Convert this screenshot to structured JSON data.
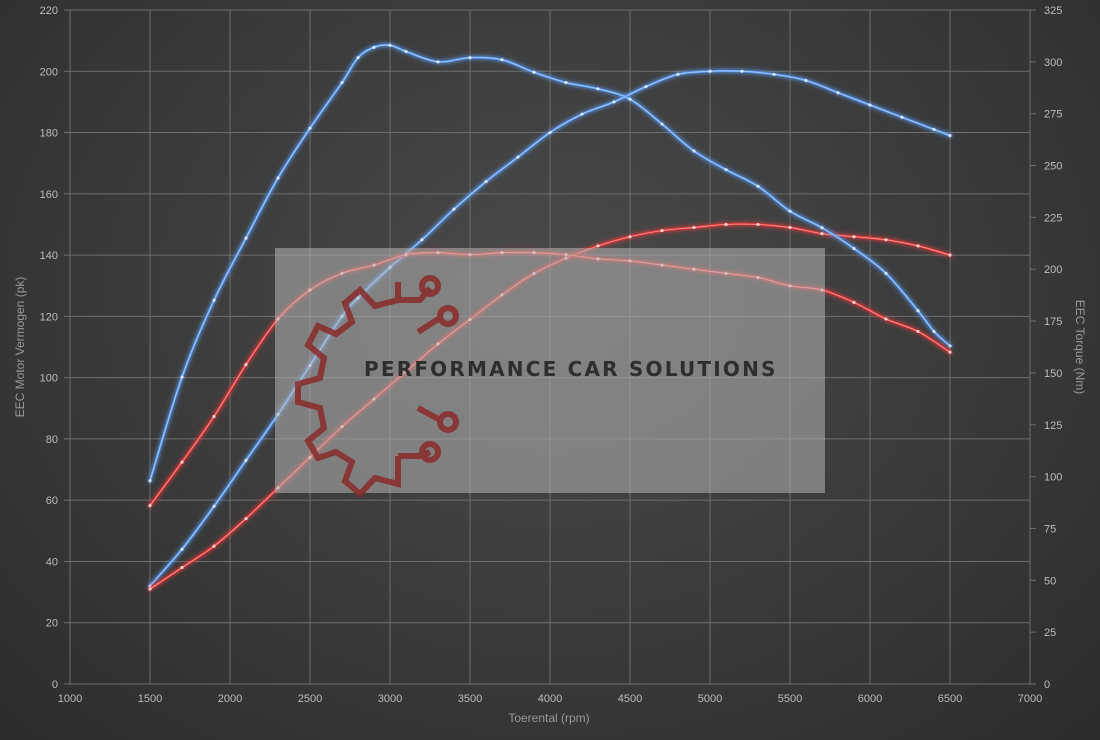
{
  "chart_data": {
    "type": "line",
    "xlabel": "Toerental (rpm)",
    "ylabel_left": "EEC Motor Vermogen (pk)",
    "ylabel_right": "EEC Torque (Nm)",
    "xlim": [
      1000,
      7000
    ],
    "xticks": [
      1000,
      1500,
      2000,
      2500,
      3000,
      3500,
      4000,
      4500,
      5000,
      5500,
      6000,
      6500,
      7000
    ],
    "ylim_left": [
      0,
      220
    ],
    "yticks_left": [
      0,
      20,
      40,
      60,
      80,
      100,
      120,
      140,
      160,
      180,
      200,
      220
    ],
    "ylim_right": [
      0,
      325
    ],
    "yticks_right": [
      0,
      25,
      50,
      75,
      100,
      125,
      150,
      175,
      200,
      225,
      250,
      275,
      300,
      325
    ],
    "grid": true,
    "series": [
      {
        "axis": "left",
        "color": "#5b9bf0",
        "x": [
          1500,
          1700,
          1900,
          2100,
          2300,
          2500,
          2700,
          2800,
          3000,
          3200,
          3400,
          3600,
          3800,
          4000,
          4200,
          4400,
          4600,
          4800,
          5000,
          5200,
          5400,
          5600,
          5800,
          6000,
          6200,
          6400,
          6500
        ],
        "y": [
          32,
          44,
          58,
          73,
          88,
          104,
          120,
          126,
          136,
          145,
          155,
          164,
          172,
          180,
          186,
          190,
          195,
          199,
          200,
          200,
          199,
          197,
          193,
          189,
          185,
          181,
          179
        ]
      },
      {
        "axis": "left",
        "color": "#e83a3a",
        "x": [
          1500,
          1700,
          1900,
          2100,
          2300,
          2500,
          2700,
          2900,
          3100,
          3300,
          3500,
          3700,
          3900,
          4100,
          4300,
          4500,
          4700,
          4900,
          5100,
          5300,
          5500,
          5700,
          5900,
          6100,
          6300,
          6500
        ],
        "y": [
          31,
          38,
          45,
          54,
          64,
          74,
          84,
          93,
          102,
          111,
          119,
          127,
          134,
          139,
          143,
          146,
          148,
          149,
          150,
          150,
          149,
          147,
          146,
          145,
          143,
          140
        ]
      },
      {
        "axis": "right",
        "color": "#5b9bf0",
        "x": [
          1500,
          1700,
          1900,
          2100,
          2300,
          2500,
          2700,
          2800,
          2900,
          3000,
          3100,
          3300,
          3500,
          3700,
          3900,
          4100,
          4300,
          4500,
          4700,
          4900,
          5100,
          5300,
          5500,
          5700,
          5900,
          6100,
          6300,
          6400,
          6500
        ],
        "y": [
          98,
          148,
          185,
          215,
          244,
          268,
          290,
          302,
          307,
          308,
          305,
          300,
          302,
          301,
          295,
          290,
          287,
          282,
          270,
          257,
          248,
          240,
          228,
          220,
          210,
          198,
          180,
          170,
          163
        ]
      },
      {
        "axis": "right",
        "color": "#e83a3a",
        "x": [
          1500,
          1700,
          1900,
          2100,
          2300,
          2500,
          2700,
          2900,
          3100,
          3300,
          3500,
          3700,
          3900,
          4100,
          4300,
          4500,
          4700,
          4900,
          5100,
          5300,
          5500,
          5700,
          5900,
          6100,
          6300,
          6500
        ],
        "y": [
          86,
          107,
          129,
          154,
          176,
          190,
          198,
          202,
          207,
          208,
          207,
          208,
          208,
          207,
          205,
          204,
          202,
          200,
          198,
          196,
          192,
          190,
          184,
          176,
          170,
          160
        ]
      }
    ]
  },
  "watermark": {
    "text": "PERFORMANCE CAR SOLUTIONS",
    "icon": "gear-circuit-logo",
    "accent": "#8a2a2a"
  }
}
